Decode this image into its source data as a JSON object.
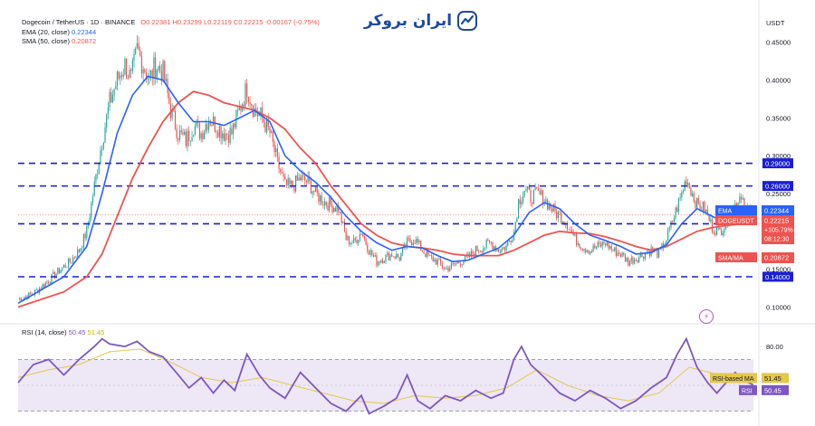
{
  "header": {
    "symbol": "Dogecoin / TetherUS · 1D · BINANCE",
    "ohlc": "O0.22381 H0.23299 L0.22119 C0.22215 -0.00167 (-0.75%)",
    "ema_label": "EMA (20, close)",
    "ema_value": "0.22344",
    "sma_label": "SMA (50, close)",
    "sma_value": "0.20872",
    "rsi_label": "RSI (14, close)",
    "rsi_value": "50.45",
    "rsi_ma_value": "51.45"
  },
  "brand": {
    "text": "ایران بروکر",
    "logo_icon": "iranbroker-logo-icon"
  },
  "indicator_icon": "lightning-icon",
  "colors": {
    "up": "#26a69a",
    "down": "#ef5350",
    "ema": "#2962ff",
    "sma": "#ef5350",
    "level_line": "#1a1fd6",
    "rsi": "#7e57c2",
    "rsi_ma": "#e5c84a",
    "rsi_band": "#ede7f6"
  },
  "chart_data": [
    {
      "type": "line",
      "title": "Dogecoin / TetherUS · 1D · BINANCE",
      "quote_currency": "USDT",
      "ylim": [
        0.085,
        0.47
      ],
      "y_ticks": [
        "0.45000",
        "0.40000",
        "0.35000",
        "0.30000",
        "0.25000",
        "0.20000",
        "0.15000",
        "0.10000"
      ],
      "horizontal_levels": [
        {
          "label": "0.29000",
          "value": 0.29
        },
        {
          "label": "0.26000",
          "value": 0.26
        },
        {
          "label": "0.21000",
          "value": 0.21
        },
        {
          "label": "0.14000",
          "value": 0.14
        }
      ],
      "axis_tags": [
        {
          "label": "EMA",
          "value_label": "0.22344",
          "value": 0.22344,
          "color": "#2962ff"
        },
        {
          "label": "DOGEUSDT",
          "value_label": "0.22215",
          "extra": [
            "+105.79%",
            "08:12:30"
          ],
          "value": 0.22215,
          "color": "#ef5350"
        },
        {
          "label": "SMA/MA",
          "value_label": "0.20872",
          "value": 0.20872,
          "color": "#ef5350"
        }
      ],
      "price_path": [
        [
          0,
          0.11
        ],
        [
          10,
          0.118
        ],
        [
          20,
          0.135
        ],
        [
          28,
          0.15
        ],
        [
          34,
          0.16
        ],
        [
          40,
          0.175
        ],
        [
          45,
          0.2
        ],
        [
          50,
          0.26
        ],
        [
          55,
          0.32
        ],
        [
          60,
          0.37
        ],
        [
          65,
          0.4
        ],
        [
          70,
          0.42
        ],
        [
          74,
          0.4
        ],
        [
          78,
          0.44
        ],
        [
          82,
          0.42
        ],
        [
          86,
          0.4
        ],
        [
          90,
          0.42
        ],
        [
          95,
          0.41
        ],
        [
          100,
          0.36
        ],
        [
          105,
          0.33
        ],
        [
          110,
          0.32
        ],
        [
          115,
          0.34
        ],
        [
          120,
          0.33
        ],
        [
          125,
          0.35
        ],
        [
          130,
          0.34
        ],
        [
          135,
          0.33
        ],
        [
          140,
          0.33
        ],
        [
          145,
          0.36
        ],
        [
          150,
          0.39
        ],
        [
          155,
          0.36
        ],
        [
          160,
          0.35
        ],
        [
          165,
          0.33
        ],
        [
          170,
          0.29
        ],
        [
          175,
          0.26
        ],
        [
          180,
          0.26
        ],
        [
          185,
          0.27
        ],
        [
          190,
          0.265
        ],
        [
          195,
          0.25
        ],
        [
          200,
          0.24
        ],
        [
          205,
          0.235
        ],
        [
          210,
          0.23
        ],
        [
          215,
          0.19
        ],
        [
          220,
          0.185
        ],
        [
          225,
          0.2
        ],
        [
          230,
          0.175
        ],
        [
          235,
          0.16
        ],
        [
          240,
          0.165
        ],
        [
          245,
          0.17
        ],
        [
          250,
          0.165
        ],
        [
          255,
          0.185
        ],
        [
          260,
          0.19
        ],
        [
          265,
          0.175
        ],
        [
          270,
          0.165
        ],
        [
          275,
          0.16
        ],
        [
          280,
          0.15
        ],
        [
          285,
          0.155
        ],
        [
          290,
          0.16
        ],
        [
          295,
          0.165
        ],
        [
          300,
          0.175
        ],
        [
          305,
          0.18
        ],
        [
          310,
          0.185
        ],
        [
          315,
          0.175
        ],
        [
          320,
          0.18
        ],
        [
          325,
          0.2
        ],
        [
          328,
          0.24
        ],
        [
          332,
          0.255
        ],
        [
          336,
          0.245
        ],
        [
          340,
          0.25
        ],
        [
          344,
          0.245
        ],
        [
          348,
          0.235
        ],
        [
          352,
          0.225
        ],
        [
          356,
          0.22
        ],
        [
          360,
          0.21
        ],
        [
          365,
          0.19
        ],
        [
          370,
          0.18
        ],
        [
          375,
          0.175
        ],
        [
          380,
          0.18
        ],
        [
          385,
          0.185
        ],
        [
          390,
          0.175
        ],
        [
          395,
          0.17
        ],
        [
          400,
          0.16
        ],
        [
          405,
          0.165
        ],
        [
          410,
          0.17
        ],
        [
          415,
          0.175
        ],
        [
          420,
          0.17
        ],
        [
          425,
          0.19
        ],
        [
          430,
          0.22
        ],
        [
          435,
          0.25
        ],
        [
          438,
          0.27
        ],
        [
          441,
          0.255
        ],
        [
          445,
          0.235
        ],
        [
          450,
          0.23
        ],
        [
          455,
          0.205
        ],
        [
          460,
          0.2
        ],
        [
          465,
          0.215
        ],
        [
          470,
          0.235
        ],
        [
          474,
          0.25
        ],
        [
          478,
          0.225
        ],
        [
          482,
          0.222
        ]
      ],
      "series": [
        {
          "name": "EMA (20, close)",
          "values": [
            [
              0,
              0.105
            ],
            [
              30,
              0.14
            ],
            [
              45,
              0.18
            ],
            [
              55,
              0.25
            ],
            [
              65,
              0.33
            ],
            [
              75,
              0.38
            ],
            [
              85,
              0.405
            ],
            [
              95,
              0.4
            ],
            [
              105,
              0.37
            ],
            [
              115,
              0.345
            ],
            [
              125,
              0.345
            ],
            [
              135,
              0.34
            ],
            [
              145,
              0.35
            ],
            [
              155,
              0.36
            ],
            [
              165,
              0.345
            ],
            [
              175,
              0.3
            ],
            [
              185,
              0.28
            ],
            [
              195,
              0.265
            ],
            [
              205,
              0.245
            ],
            [
              215,
              0.22
            ],
            [
              225,
              0.2
            ],
            [
              235,
              0.185
            ],
            [
              245,
              0.175
            ],
            [
              255,
              0.18
            ],
            [
              265,
              0.178
            ],
            [
              275,
              0.168
            ],
            [
              285,
              0.16
            ],
            [
              295,
              0.162
            ],
            [
              305,
              0.17
            ],
            [
              315,
              0.178
            ],
            [
              325,
              0.195
            ],
            [
              335,
              0.225
            ],
            [
              345,
              0.238
            ],
            [
              355,
              0.23
            ],
            [
              365,
              0.21
            ],
            [
              375,
              0.195
            ],
            [
              385,
              0.188
            ],
            [
              395,
              0.18
            ],
            [
              405,
              0.17
            ],
            [
              415,
              0.172
            ],
            [
              425,
              0.182
            ],
            [
              435,
              0.21
            ],
            [
              445,
              0.23
            ],
            [
              455,
              0.22
            ],
            [
              465,
              0.21
            ],
            [
              475,
              0.225
            ],
            [
              482,
              0.223
            ]
          ]
        },
        {
          "name": "SMA (50, close)",
          "values": [
            [
              0,
              0.1
            ],
            [
              30,
              0.12
            ],
            [
              45,
              0.14
            ],
            [
              55,
              0.17
            ],
            [
              65,
              0.22
            ],
            [
              75,
              0.27
            ],
            [
              85,
              0.31
            ],
            [
              95,
              0.345
            ],
            [
              105,
              0.37
            ],
            [
              115,
              0.385
            ],
            [
              125,
              0.38
            ],
            [
              135,
              0.37
            ],
            [
              145,
              0.365
            ],
            [
              155,
              0.36
            ],
            [
              165,
              0.35
            ],
            [
              175,
              0.335
            ],
            [
              185,
              0.31
            ],
            [
              195,
              0.29
            ],
            [
              205,
              0.26
            ],
            [
              215,
              0.235
            ],
            [
              225,
              0.21
            ],
            [
              235,
              0.195
            ],
            [
              245,
              0.185
            ],
            [
              255,
              0.18
            ],
            [
              265,
              0.178
            ],
            [
              275,
              0.175
            ],
            [
              285,
              0.17
            ],
            [
              295,
              0.168
            ],
            [
              305,
              0.168
            ],
            [
              315,
              0.168
            ],
            [
              325,
              0.175
            ],
            [
              335,
              0.185
            ],
            [
              345,
              0.195
            ],
            [
              355,
              0.2
            ],
            [
              365,
              0.198
            ],
            [
              375,
              0.197
            ],
            [
              385,
              0.193
            ],
            [
              395,
              0.187
            ],
            [
              405,
              0.18
            ],
            [
              415,
              0.175
            ],
            [
              425,
              0.18
            ],
            [
              435,
              0.19
            ],
            [
              445,
              0.2
            ],
            [
              455,
              0.205
            ],
            [
              465,
              0.208
            ],
            [
              475,
              0.21
            ],
            [
              482,
              0.209
            ]
          ]
        }
      ]
    },
    {
      "type": "line",
      "title": "RSI (14, close)",
      "ylim": [
        22,
        92
      ],
      "y_ticks": [
        "80.00"
      ],
      "band": [
        30,
        70
      ],
      "middle_line": 50,
      "axis_tags": [
        {
          "label": "RSI-based MA",
          "value_label": "51.45",
          "value": 51.45,
          "color": "#e5c84a"
        },
        {
          "label": "RSI",
          "value_label": "50.45",
          "value": 50.45,
          "color": "#7e57c2"
        }
      ],
      "series": [
        {
          "name": "RSI (14, close)",
          "values": [
            [
              0,
              52
            ],
            [
              10,
              66
            ],
            [
              20,
              70
            ],
            [
              30,
              58
            ],
            [
              40,
              70
            ],
            [
              50,
              80
            ],
            [
              55,
              86
            ],
            [
              60,
              82
            ],
            [
              70,
              80
            ],
            [
              78,
              84
            ],
            [
              86,
              76
            ],
            [
              95,
              72
            ],
            [
              105,
              58
            ],
            [
              112,
              48
            ],
            [
              120,
              56
            ],
            [
              128,
              44
            ],
            [
              135,
              54
            ],
            [
              142,
              46
            ],
            [
              150,
              74
            ],
            [
              158,
              58
            ],
            [
              165,
              48
            ],
            [
              175,
              40
            ],
            [
              185,
              60
            ],
            [
              195,
              48
            ],
            [
              205,
              36
            ],
            [
              215,
              30
            ],
            [
              225,
              42
            ],
            [
              230,
              28
            ],
            [
              240,
              34
            ],
            [
              248,
              40
            ],
            [
              255,
              58
            ],
            [
              262,
              38
            ],
            [
              270,
              32
            ],
            [
              280,
              42
            ],
            [
              290,
              38
            ],
            [
              300,
              46
            ],
            [
              310,
              40
            ],
            [
              318,
              44
            ],
            [
              325,
              70
            ],
            [
              330,
              80
            ],
            [
              336,
              66
            ],
            [
              345,
              56
            ],
            [
              355,
              44
            ],
            [
              365,
              38
            ],
            [
              375,
              46
            ],
            [
              385,
              40
            ],
            [
              395,
              32
            ],
            [
              405,
              38
            ],
            [
              415,
              48
            ],
            [
              425,
              56
            ],
            [
              432,
              74
            ],
            [
              438,
              86
            ],
            [
              445,
              64
            ],
            [
              452,
              52
            ],
            [
              458,
              44
            ],
            [
              464,
              52
            ],
            [
              470,
              60
            ],
            [
              476,
              54
            ],
            [
              482,
              50
            ]
          ]
        },
        {
          "name": "RSI-based MA",
          "values": [
            [
              0,
              56
            ],
            [
              20,
              62
            ],
            [
              40,
              66
            ],
            [
              60,
              76
            ],
            [
              80,
              78
            ],
            [
              100,
              68
            ],
            [
              120,
              56
            ],
            [
              140,
              52
            ],
            [
              160,
              56
            ],
            [
              180,
              50
            ],
            [
              200,
              44
            ],
            [
              220,
              38
            ],
            [
              240,
              36
            ],
            [
              260,
              42
            ],
            [
              280,
              40
            ],
            [
              300,
              42
            ],
            [
              320,
              48
            ],
            [
              340,
              62
            ],
            [
              360,
              50
            ],
            [
              380,
              42
            ],
            [
              400,
              38
            ],
            [
              420,
              44
            ],
            [
              440,
              64
            ],
            [
              460,
              58
            ],
            [
              482,
              51
            ]
          ]
        }
      ]
    }
  ]
}
